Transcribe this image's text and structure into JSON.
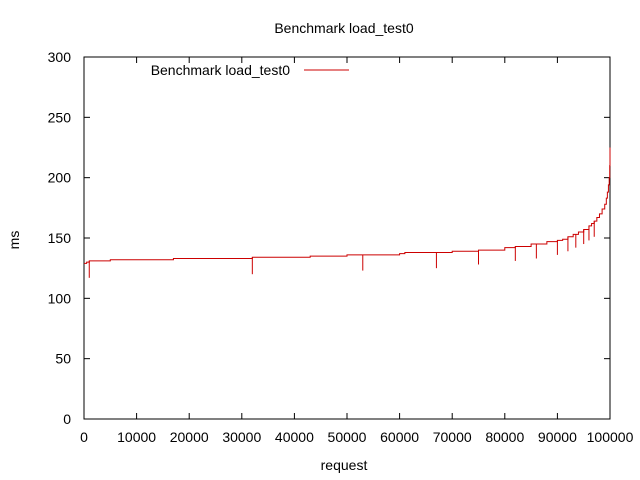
{
  "chart_data": {
    "type": "line",
    "title": "Benchmark load_test0",
    "xlabel": "request",
    "ylabel": "ms",
    "xlim": [
      0,
      100000
    ],
    "ylim": [
      0,
      300
    ],
    "grid": false,
    "legend": {
      "position": "top-left",
      "entries": [
        "Benchmark load_test0"
      ]
    },
    "series": [
      {
        "name": "Benchmark load_test0",
        "color": "#cc0000",
        "x": [
          0,
          500,
          1000,
          1500,
          5000,
          10000,
          17000,
          20000,
          25000,
          30000,
          32000,
          35000,
          40000,
          43000,
          45000,
          50000,
          55000,
          60000,
          61000,
          65000,
          70000,
          75000,
          80000,
          82000,
          85000,
          88000,
          90000,
          91000,
          92000,
          93000,
          94000,
          95000,
          96000,
          96500,
          97000,
          97500,
          98000,
          98500,
          99000,
          99300,
          99500,
          99700,
          99850,
          99950,
          100000
        ],
        "y": [
          129,
          130,
          131,
          131,
          132,
          132,
          133,
          133,
          133,
          133,
          134,
          134,
          134,
          135,
          135,
          136,
          136,
          137,
          138,
          138,
          139,
          140,
          142,
          143,
          145,
          147,
          148,
          149,
          151,
          153,
          155,
          157,
          160,
          162,
          164,
          167,
          170,
          174,
          178,
          183,
          188,
          194,
          200,
          210,
          225
        ]
      }
    ],
    "dips": {
      "x": [
        1000,
        32000,
        53000,
        67000,
        75000,
        82000,
        86000,
        90000,
        92000,
        93500,
        95000,
        96000,
        97000
      ],
      "y": [
        117,
        120,
        123,
        125,
        128,
        131,
        133,
        136,
        139,
        142,
        145,
        148,
        151
      ]
    },
    "xticks": [
      "0",
      "10000",
      "20000",
      "30000",
      "40000",
      "50000",
      "60000",
      "70000",
      "80000",
      "90000",
      "100000"
    ],
    "yticks": [
      "0",
      "50",
      "100",
      "150",
      "200",
      "250",
      "300"
    ]
  }
}
